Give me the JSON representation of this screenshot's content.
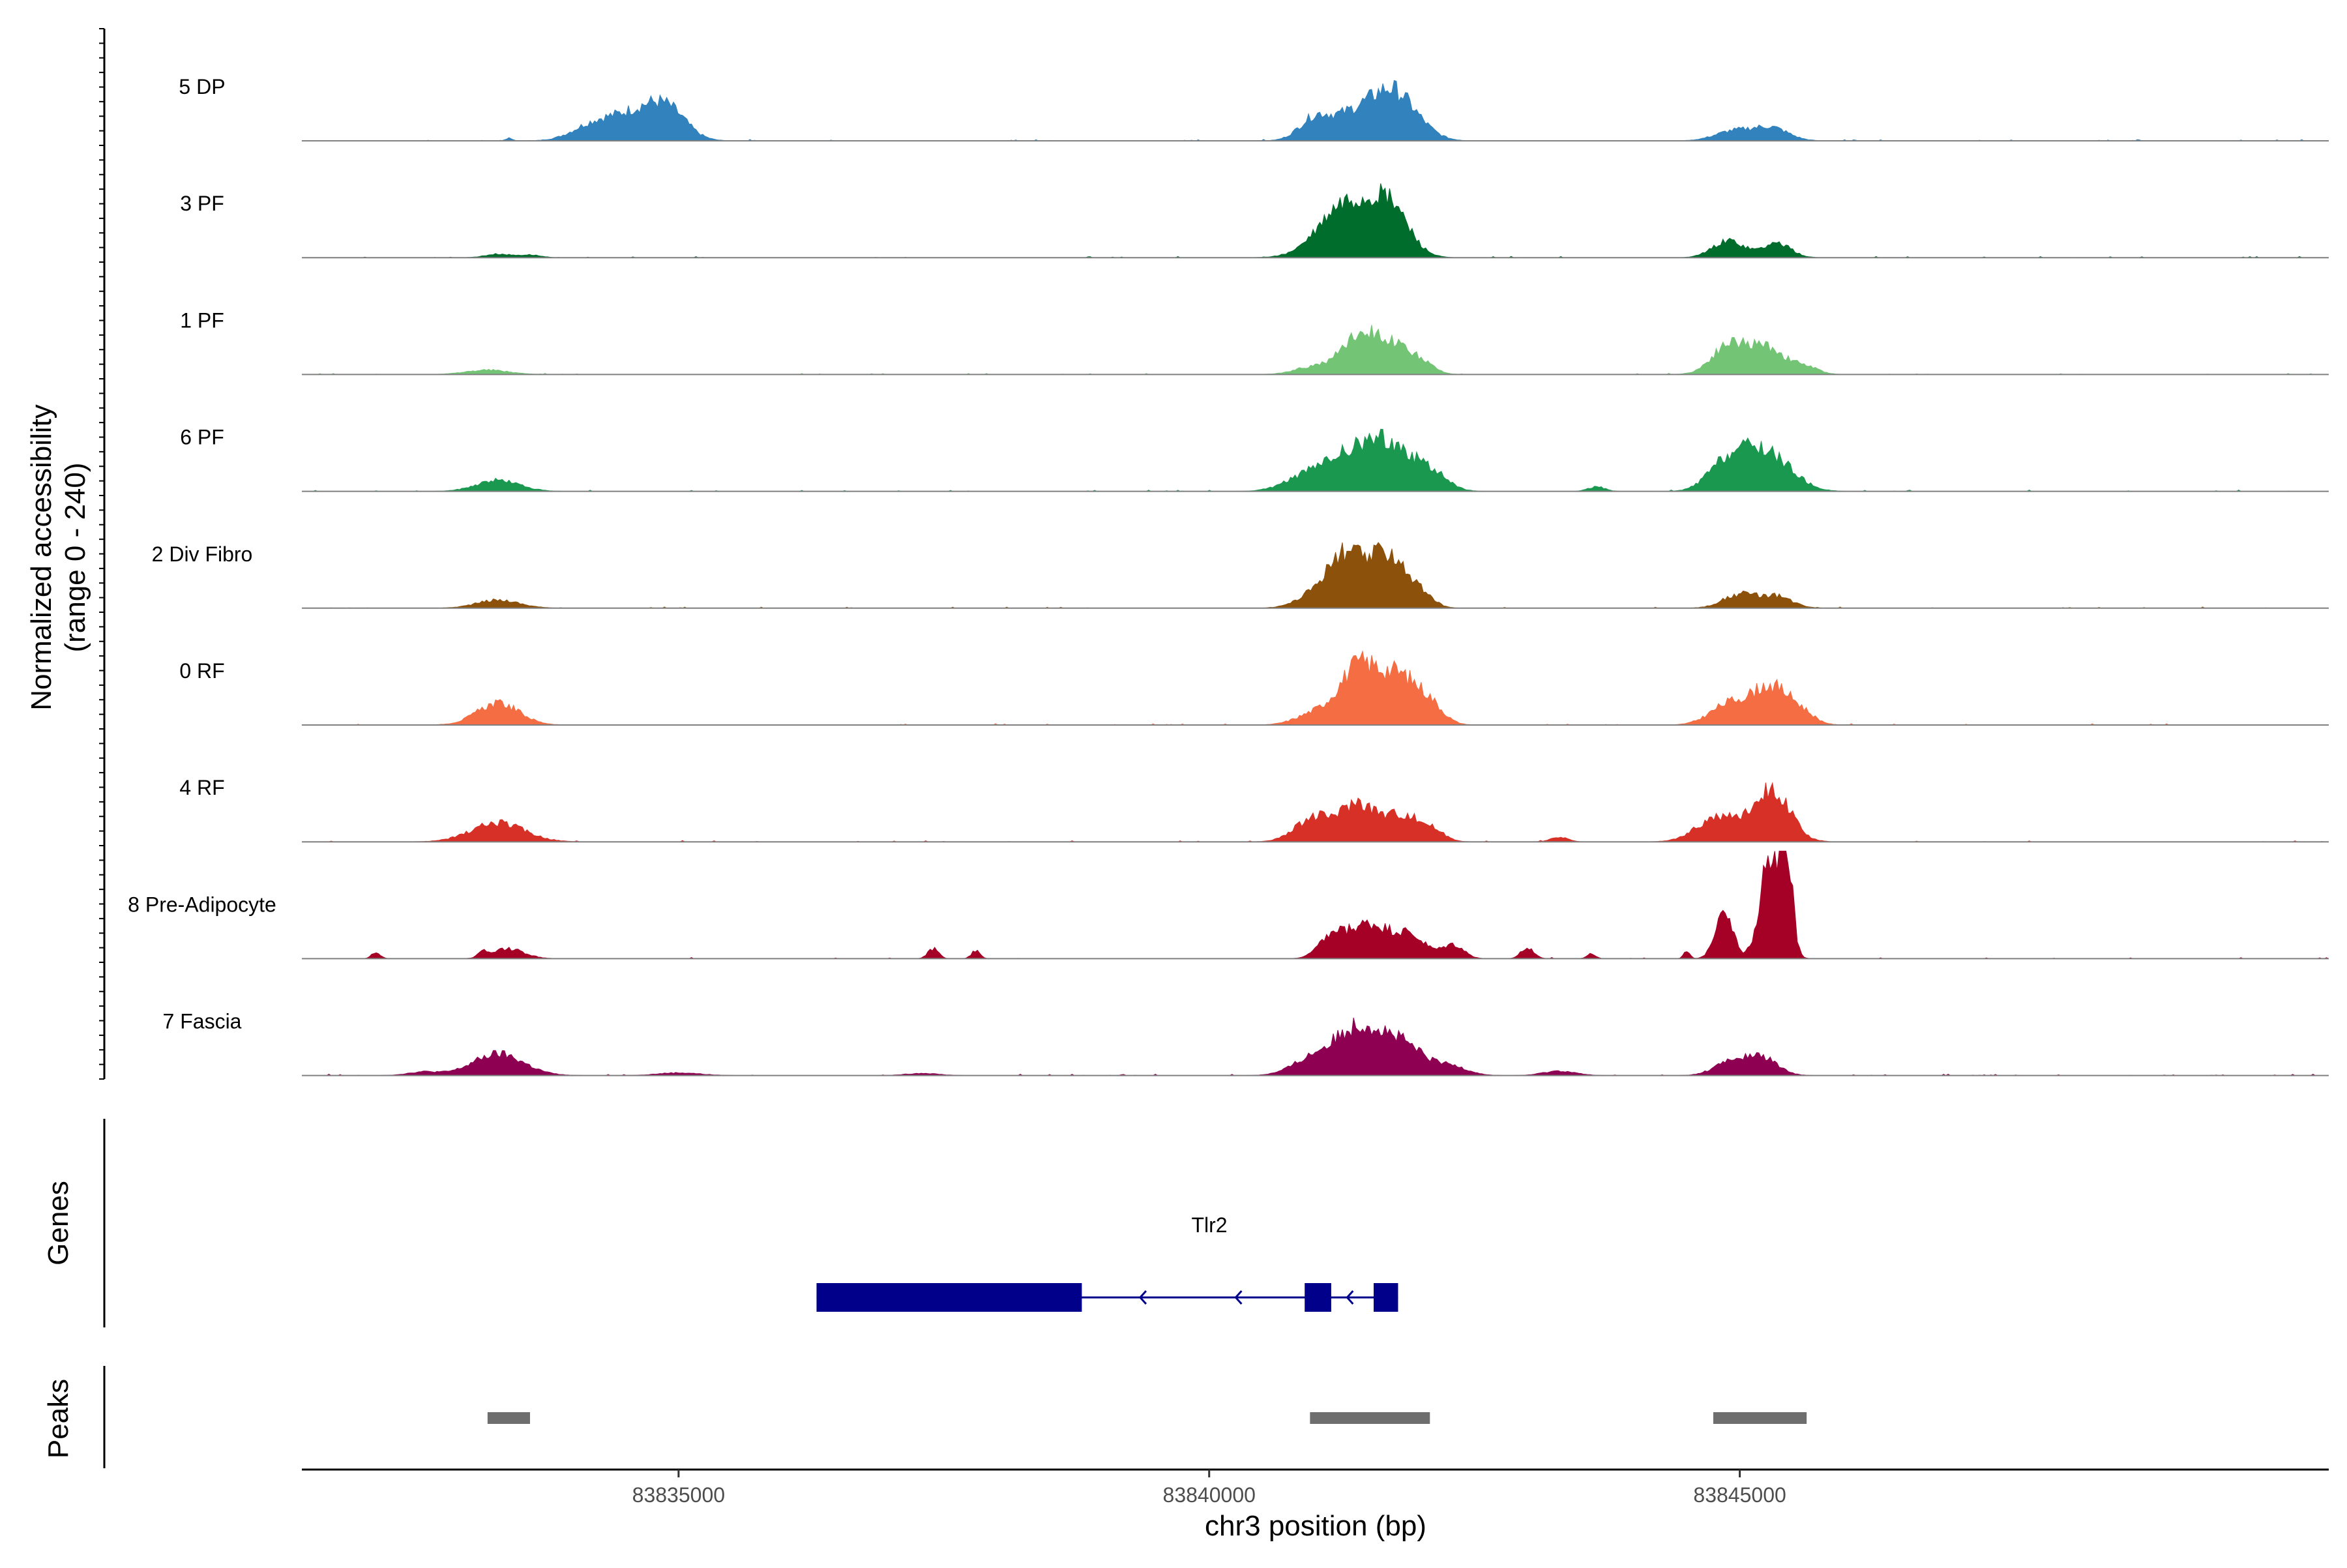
{
  "chart_data": {
    "type": "area",
    "title": "",
    "ylabel": "Normalized accessibility\n(range 0 - 240)",
    "ylabel_lines": [
      "Normalized accessibility",
      "(range 0 - 240)"
    ],
    "xlabel": "chr3 position (bp)",
    "xlim": [
      83831450,
      83850550
    ],
    "ylim": [
      0,
      240
    ],
    "x_ticks": [
      83835000,
      83840000,
      83845000
    ],
    "x_tick_labels": [
      "83835000",
      "83840000",
      "83845000"
    ],
    "genes_label": "Genes",
    "peaks_label": "Peaks",
    "series": [
      {
        "name": "5 DP",
        "color": "#3182BD",
        "peaks": [
          [
            83833400,
            30,
            6
          ],
          [
            83834200,
            200,
            35
          ],
          [
            83834600,
            220,
            55
          ],
          [
            83834900,
            180,
            60
          ],
          [
            83841000,
            150,
            50
          ],
          [
            83841400,
            200,
            65
          ],
          [
            83841700,
            160,
            72
          ],
          [
            83841900,
            180,
            45
          ],
          [
            83844950,
            180,
            22
          ],
          [
            83845300,
            160,
            28
          ]
        ]
      },
      {
        "name": "3 PF",
        "color": "#006D2C",
        "peaks": [
          [
            83833300,
            120,
            8
          ],
          [
            83833600,
            100,
            6
          ],
          [
            83841000,
            200,
            15
          ],
          [
            83841300,
            220,
            110
          ],
          [
            83841700,
            180,
            110
          ],
          [
            83844900,
            150,
            38
          ],
          [
            83845350,
            130,
            32
          ]
        ]
      },
      {
        "name": "1 PF",
        "color": "#74C476",
        "peaks": [
          [
            83833200,
            200,
            10
          ],
          [
            83841000,
            180,
            18
          ],
          [
            83841400,
            160,
            75
          ],
          [
            83841700,
            180,
            65
          ],
          [
            83842000,
            120,
            20
          ],
          [
            83844900,
            160,
            65
          ],
          [
            83845250,
            160,
            58
          ],
          [
            83845600,
            130,
            18
          ]
        ]
      },
      {
        "name": "6 PF",
        "color": "#1A9850",
        "peaks": [
          [
            83833300,
            200,
            25
          ],
          [
            83840900,
            200,
            30
          ],
          [
            83841300,
            220,
            70
          ],
          [
            83841700,
            220,
            100
          ],
          [
            83842100,
            150,
            35
          ],
          [
            83843650,
            80,
            10
          ],
          [
            83844800,
            150,
            30
          ],
          [
            83845050,
            200,
            75
          ],
          [
            83845350,
            200,
            55
          ]
        ]
      },
      {
        "name": "2 Div Fibro",
        "color": "#8C510A",
        "peaks": [
          [
            83833300,
            200,
            18
          ],
          [
            83841000,
            180,
            25
          ],
          [
            83841300,
            180,
            115
          ],
          [
            83841700,
            160,
            115
          ],
          [
            83842000,
            120,
            25
          ],
          [
            83845000,
            160,
            30
          ],
          [
            83845350,
            150,
            25
          ]
        ]
      },
      {
        "name": "0 RF",
        "color": "#F46D43",
        "peaks": [
          [
            83833300,
            200,
            48
          ],
          [
            83841000,
            180,
            25
          ],
          [
            83841400,
            180,
            120
          ],
          [
            83841800,
            200,
            105
          ],
          [
            83842100,
            120,
            25
          ],
          [
            83844900,
            180,
            45
          ],
          [
            83845300,
            180,
            85
          ],
          [
            83845600,
            120,
            18
          ]
        ]
      },
      {
        "name": "4 RF",
        "color": "#D73027",
        "peaks": [
          [
            83833300,
            250,
            42
          ],
          [
            83841000,
            180,
            55
          ],
          [
            83841400,
            150,
            80
          ],
          [
            83841800,
            180,
            60
          ],
          [
            83842100,
            120,
            20
          ],
          [
            83843300,
            80,
            10
          ],
          [
            83844800,
            200,
            55
          ],
          [
            83845300,
            170,
            115
          ]
        ]
      },
      {
        "name": "8 Pre-Adipocyte",
        "color": "#A50026",
        "peaks": [
          [
            83832150,
            40,
            15
          ],
          [
            83833150,
            40,
            12
          ],
          [
            83833400,
            150,
            22
          ],
          [
            83837400,
            50,
            22
          ],
          [
            83837800,
            40,
            18
          ],
          [
            83841150,
            120,
            40
          ],
          [
            83841500,
            200,
            75
          ],
          [
            83841900,
            150,
            45
          ],
          [
            83842300,
            100,
            30
          ],
          [
            83843000,
            60,
            25
          ],
          [
            83843600,
            40,
            12
          ],
          [
            83844500,
            30,
            15
          ],
          [
            83844850,
            80,
            115
          ],
          [
            83845300,
            100,
            240
          ],
          [
            83845450,
            50,
            180
          ]
        ]
      },
      {
        "name": "7 Fascia",
        "color": "#8E0152",
        "peaks": [
          [
            83832600,
            150,
            8
          ],
          [
            83833300,
            240,
            48
          ],
          [
            83835000,
            200,
            6
          ],
          [
            83837300,
            150,
            5
          ],
          [
            83841000,
            200,
            40
          ],
          [
            83841400,
            200,
            95
          ],
          [
            83841800,
            220,
            70
          ],
          [
            83842300,
            150,
            18
          ],
          [
            83843300,
            150,
            10
          ],
          [
            83844900,
            150,
            28
          ],
          [
            83845200,
            150,
            40
          ]
        ]
      }
    ],
    "gene": {
      "name": "Tlr2",
      "strand": "-",
      "color": "#00008B",
      "line": [
        83836300,
        83841780
      ],
      "exons": [
        [
          83836300,
          83838800
        ],
        [
          83840900,
          83841150
        ],
        [
          83841550,
          83841780
        ]
      ],
      "arrows": [
        83839350,
        83840250,
        83841300
      ]
    },
    "peaks": [
      [
        83833200,
        83833600
      ],
      [
        83840950,
        83842080
      ],
      [
        83844750,
        83845630
      ]
    ],
    "peak_color": "#6E6E6E"
  }
}
